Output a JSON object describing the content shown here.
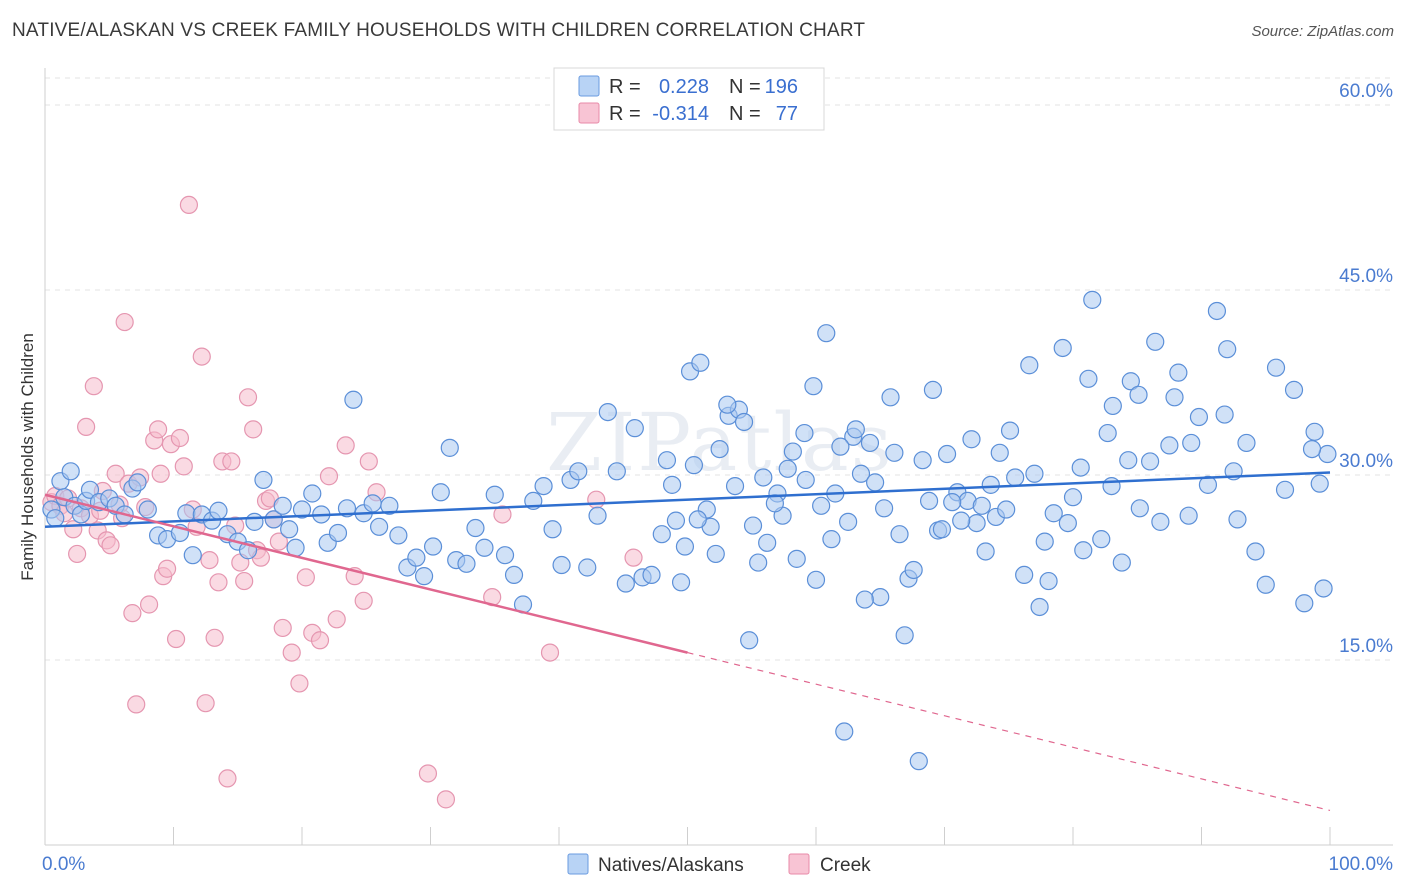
{
  "header": {
    "title": "NATIVE/ALASKAN VS CREEK FAMILY HOUSEHOLDS WITH CHILDREN CORRELATION CHART",
    "source": "Source: ZipAtlas.com"
  },
  "legend": {
    "r_label": "R =",
    "n_label": "N =",
    "series": [
      {
        "name": "Natives/Alaskans",
        "r": "0.228",
        "n": "196",
        "fill": "#b8d3f5",
        "stroke": "#6a9be0"
      },
      {
        "name": "Creek",
        "r": "-0.314",
        "n": "77",
        "fill": "#f8c4d4",
        "stroke": "#e88aa8"
      }
    ]
  },
  "watermark": "ZIPatlas",
  "colors": {
    "blue_point_fill": "#a9c9f0",
    "blue_point_stroke": "#5b8fd8",
    "blue_line": "#2f6fcf",
    "pink_point_fill": "#f6bccc",
    "pink_point_stroke": "#e596b0",
    "pink_line": "#e0678f",
    "grid": "#e3e3e3",
    "axis_text": "#4a7bd0"
  },
  "chart_data": {
    "type": "scatter",
    "title": "NATIVE/ALASKAN VS CREEK FAMILY HOUSEHOLDS WITH CHILDREN CORRELATION CHART",
    "xlabel": "",
    "ylabel": "Family Households with Children",
    "xlim": [
      0,
      100
    ],
    "ylim": [
      0,
      63
    ],
    "x_tick_labels": [
      "0.0%",
      "100.0%"
    ],
    "y_ticks": [
      15,
      30,
      45,
      60
    ],
    "y_tick_labels": [
      "15.0%",
      "30.0%",
      "45.0%",
      "60.0%"
    ],
    "grid": true,
    "series": [
      {
        "name": "Natives/Alaskans",
        "r": 0.228,
        "n": 196,
        "trend": {
          "x": [
            0,
            100
          ],
          "y": [
            25.8,
            30.2
          ]
        },
        "points": [
          [
            0.5,
            27.2
          ],
          [
            0.8,
            26.5
          ],
          [
            1.2,
            29.5
          ],
          [
            1.5,
            28.2
          ],
          [
            2,
            30.3
          ],
          [
            2.3,
            27.5
          ],
          [
            2.8,
            26.8
          ],
          [
            3.2,
            27.9
          ],
          [
            3.5,
            28.8
          ],
          [
            4.2,
            27.8
          ],
          [
            5,
            28.1
          ],
          [
            5.5,
            27.5
          ],
          [
            6.2,
            26.8
          ],
          [
            6.8,
            28.9
          ],
          [
            7.2,
            29.4
          ],
          [
            8,
            27.2
          ],
          [
            8.8,
            25.1
          ],
          [
            9.5,
            24.8
          ],
          [
            10.5,
            25.3
          ],
          [
            11,
            26.9
          ],
          [
            11.5,
            23.5
          ],
          [
            12.2,
            26.8
          ],
          [
            13,
            26.3
          ],
          [
            13.5,
            27.1
          ],
          [
            14.2,
            25.2
          ],
          [
            15,
            24.6
          ],
          [
            15.8,
            23.9
          ],
          [
            16.3,
            26.2
          ],
          [
            17,
            29.6
          ],
          [
            17.8,
            26.4
          ],
          [
            18.5,
            27.5
          ],
          [
            19,
            25.6
          ],
          [
            19.5,
            24.1
          ],
          [
            20,
            27.2
          ],
          [
            20.8,
            28.5
          ],
          [
            21.5,
            26.8
          ],
          [
            22,
            24.5
          ],
          [
            22.8,
            25.3
          ],
          [
            23.5,
            27.3
          ],
          [
            24,
            36.1
          ],
          [
            24.8,
            26.9
          ],
          [
            25.5,
            27.7
          ],
          [
            26,
            25.8
          ],
          [
            26.8,
            27.5
          ],
          [
            27.5,
            25.1
          ],
          [
            28.2,
            22.5
          ],
          [
            28.9,
            23.3
          ],
          [
            29.5,
            21.8
          ],
          [
            30.2,
            24.2
          ],
          [
            30.8,
            28.6
          ],
          [
            31.5,
            32.2
          ],
          [
            32,
            23.1
          ],
          [
            32.8,
            22.8
          ],
          [
            33.5,
            25.7
          ],
          [
            34.2,
            24.1
          ],
          [
            35,
            28.4
          ],
          [
            35.8,
            23.5
          ],
          [
            36.5,
            21.9
          ],
          [
            37.2,
            19.5
          ],
          [
            38,
            27.9
          ],
          [
            38.8,
            29.1
          ],
          [
            39.5,
            25.6
          ],
          [
            40.2,
            22.7
          ],
          [
            40.9,
            29.6
          ],
          [
            41.5,
            30.3
          ],
          [
            42.2,
            22.5
          ],
          [
            43,
            26.7
          ],
          [
            43.8,
            35.1
          ],
          [
            44.5,
            30.3
          ],
          [
            45.2,
            21.2
          ],
          [
            45.9,
            33.8
          ],
          [
            46.5,
            21.7
          ],
          [
            47.2,
            21.9
          ],
          [
            48,
            25.2
          ],
          [
            48.8,
            29.2
          ],
          [
            49.5,
            21.3
          ],
          [
            50.2,
            38.4
          ],
          [
            51,
            39.1
          ],
          [
            51.8,
            25.8
          ],
          [
            52.5,
            32.1
          ],
          [
            53.2,
            34.8
          ],
          [
            54,
            35.3
          ],
          [
            54.8,
            16.6
          ],
          [
            55.5,
            22.9
          ],
          [
            56.2,
            24.5
          ],
          [
            57,
            28.5
          ],
          [
            57.8,
            30.5
          ],
          [
            58.5,
            23.2
          ],
          [
            59.2,
            29.6
          ],
          [
            60,
            21.5
          ],
          [
            60.8,
            41.5
          ],
          [
            61.5,
            28.5
          ],
          [
            62.2,
            9.2
          ],
          [
            62.9,
            33.1
          ],
          [
            63.5,
            30.1
          ],
          [
            64.2,
            32.6
          ],
          [
            65,
            20.1
          ],
          [
            65.8,
            36.3
          ],
          [
            66.5,
            25.2
          ],
          [
            67.2,
            21.6
          ],
          [
            68,
            6.8
          ],
          [
            68.8,
            27.9
          ],
          [
            69.5,
            25.5
          ],
          [
            70.2,
            31.7
          ],
          [
            71,
            28.6
          ],
          [
            71.8,
            27.9
          ],
          [
            72.5,
            26.1
          ],
          [
            73.2,
            23.8
          ],
          [
            74,
            26.6
          ],
          [
            74.8,
            27.2
          ],
          [
            75.5,
            29.8
          ],
          [
            76.2,
            21.9
          ],
          [
            77,
            30.1
          ],
          [
            77.8,
            24.6
          ],
          [
            78.5,
            26.9
          ],
          [
            79.2,
            40.3
          ],
          [
            80,
            28.2
          ],
          [
            80.8,
            23.9
          ],
          [
            81.5,
            44.2
          ],
          [
            82.2,
            24.8
          ],
          [
            83,
            29.1
          ],
          [
            83.8,
            22.9
          ],
          [
            84.5,
            37.6
          ],
          [
            85.2,
            27.3
          ],
          [
            86,
            31.1
          ],
          [
            86.8,
            26.2
          ],
          [
            87.5,
            32.4
          ],
          [
            88.2,
            38.3
          ],
          [
            89,
            26.7
          ],
          [
            89.8,
            34.7
          ],
          [
            90.5,
            29.2
          ],
          [
            91.2,
            43.3
          ],
          [
            92,
            40.2
          ],
          [
            92.8,
            26.4
          ],
          [
            93.5,
            32.6
          ],
          [
            94.2,
            23.8
          ],
          [
            95,
            21.1
          ],
          [
            95.8,
            38.7
          ],
          [
            96.5,
            28.8
          ],
          [
            97.2,
            36.9
          ],
          [
            98,
            19.6
          ],
          [
            98.8,
            33.5
          ],
          [
            99.5,
            20.8
          ],
          [
            99.8,
            31.7
          ],
          [
            99.2,
            29.3
          ],
          [
            98.6,
            32.1
          ],
          [
            91.8,
            34.9
          ],
          [
            92.5,
            30.3
          ],
          [
            89.2,
            32.6
          ],
          [
            87.9,
            36.3
          ],
          [
            86.4,
            40.8
          ],
          [
            85.1,
            36.5
          ],
          [
            84.3,
            31.2
          ],
          [
            83.1,
            35.6
          ],
          [
            82.7,
            33.4
          ],
          [
            81.2,
            37.8
          ],
          [
            80.6,
            30.6
          ],
          [
            79.6,
            26.1
          ],
          [
            78.1,
            21.4
          ],
          [
            77.4,
            19.3
          ],
          [
            76.6,
            38.9
          ],
          [
            75.1,
            33.6
          ],
          [
            74.3,
            31.8
          ],
          [
            73.6,
            29.2
          ],
          [
            72.9,
            27.5
          ],
          [
            72.1,
            32.9
          ],
          [
            71.3,
            26.3
          ],
          [
            70.6,
            27.8
          ],
          [
            69.8,
            25.6
          ],
          [
            69.1,
            36.9
          ],
          [
            68.3,
            31.2
          ],
          [
            67.6,
            22.3
          ],
          [
            66.9,
            17.0
          ],
          [
            66.1,
            31.8
          ],
          [
            65.3,
            27.3
          ],
          [
            64.6,
            29.4
          ],
          [
            63.8,
            19.9
          ],
          [
            63.1,
            33.7
          ],
          [
            62.5,
            26.2
          ],
          [
            61.9,
            32.3
          ],
          [
            61.2,
            24.8
          ],
          [
            60.4,
            27.5
          ],
          [
            59.8,
            37.2
          ],
          [
            59.1,
            33.4
          ],
          [
            58.2,
            31.9
          ],
          [
            57.4,
            26.7
          ],
          [
            56.8,
            27.7
          ],
          [
            55.9,
            29.8
          ],
          [
            55.1,
            25.9
          ],
          [
            54.4,
            34.3
          ],
          [
            53.7,
            29.1
          ],
          [
            53.1,
            35.7
          ],
          [
            52.2,
            23.6
          ],
          [
            51.5,
            27.2
          ],
          [
            50.8,
            26.4
          ],
          [
            50.5,
            30.8
          ],
          [
            49.8,
            24.2
          ],
          [
            49.1,
            26.3
          ],
          [
            48.4,
            31.2
          ]
        ]
      },
      {
        "name": "Creek",
        "r": -0.314,
        "n": 77,
        "trend": {
          "x": [
            0,
            50
          ],
          "y": [
            28.4,
            15.6
          ]
        },
        "trend_dashed": {
          "x": [
            50,
            100
          ],
          "y": [
            15.6,
            2.8
          ]
        },
        "points": [
          [
            0.5,
            27.8
          ],
          [
            0.8,
            28.3
          ],
          [
            1.2,
            27.5
          ],
          [
            1.5,
            26.9
          ],
          [
            1.8,
            28.1
          ],
          [
            2.2,
            25.6
          ],
          [
            2.5,
            23.6
          ],
          [
            2.8,
            27.3
          ],
          [
            3.2,
            33.9
          ],
          [
            3.5,
            26.7
          ],
          [
            3.8,
            37.2
          ],
          [
            4.1,
            25.5
          ],
          [
            4.5,
            28.7
          ],
          [
            4.8,
            24.7
          ],
          [
            5.1,
            24.3
          ],
          [
            5.5,
            30.1
          ],
          [
            5.8,
            27.6
          ],
          [
            6.2,
            42.4
          ],
          [
            6.5,
            29.3
          ],
          [
            6.8,
            18.8
          ],
          [
            7.1,
            11.4
          ],
          [
            7.4,
            29.8
          ],
          [
            7.8,
            27.4
          ],
          [
            8.1,
            19.5
          ],
          [
            8.5,
            32.8
          ],
          [
            8.8,
            33.7
          ],
          [
            9.2,
            21.8
          ],
          [
            9.5,
            22.4
          ],
          [
            9.8,
            32.5
          ],
          [
            10.2,
            16.7
          ],
          [
            10.5,
            33.0
          ],
          [
            10.8,
            30.7
          ],
          [
            11.2,
            51.9
          ],
          [
            11.5,
            27.2
          ],
          [
            11.8,
            25.8
          ],
          [
            12.2,
            39.6
          ],
          [
            12.5,
            11.5
          ],
          [
            12.8,
            23.1
          ],
          [
            13.2,
            16.8
          ],
          [
            13.5,
            21.3
          ],
          [
            13.8,
            31.1
          ],
          [
            14.2,
            5.4
          ],
          [
            14.5,
            31.1
          ],
          [
            14.8,
            25.9
          ],
          [
            15.2,
            22.9
          ],
          [
            15.5,
            21.4
          ],
          [
            15.8,
            36.3
          ],
          [
            16.2,
            33.7
          ],
          [
            16.5,
            23.9
          ],
          [
            16.8,
            23.3
          ],
          [
            17.2,
            27.9
          ],
          [
            17.5,
            28.1
          ],
          [
            17.8,
            26.4
          ],
          [
            18.2,
            24.6
          ],
          [
            18.5,
            17.6
          ],
          [
            19.2,
            15.6
          ],
          [
            19.8,
            13.1
          ],
          [
            20.3,
            21.7
          ],
          [
            20.8,
            17.2
          ],
          [
            21.4,
            16.6
          ],
          [
            22.1,
            29.9
          ],
          [
            22.7,
            18.3
          ],
          [
            23.4,
            32.4
          ],
          [
            24.1,
            21.8
          ],
          [
            24.8,
            19.8
          ],
          [
            25.2,
            31.1
          ],
          [
            25.8,
            28.6
          ],
          [
            29.8,
            5.8
          ],
          [
            31.2,
            3.7
          ],
          [
            34.8,
            20.1
          ],
          [
            35.6,
            26.8
          ],
          [
            39.3,
            15.6
          ],
          [
            42.9,
            28.0
          ],
          [
            45.8,
            23.3
          ],
          [
            9.0,
            30.1
          ],
          [
            4.3,
            27.1
          ],
          [
            6.0,
            26.5
          ]
        ]
      }
    ]
  }
}
